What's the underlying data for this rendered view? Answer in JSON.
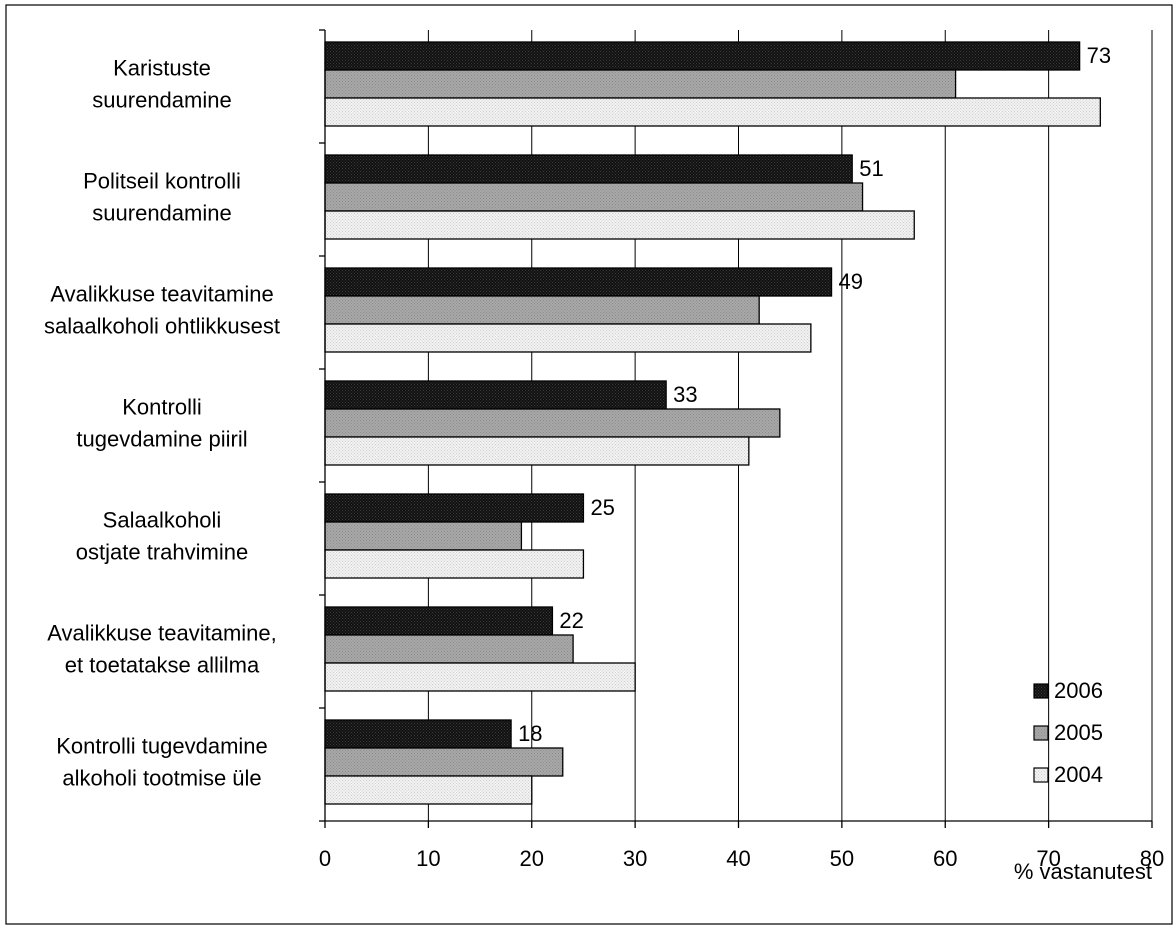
{
  "chart_data": {
    "type": "bar",
    "orientation": "horizontal",
    "categories": [
      [
        "Karistuste",
        "suurendamine"
      ],
      [
        "Politseil kontrolli",
        "suurendamine"
      ],
      [
        "Avalikkuse teavitamine",
        "salaalkoholi ohtlikkusest"
      ],
      [
        "Kontrolli",
        "tugevdamine piiril"
      ],
      [
        "Salaalkoholi",
        "ostjate trahvimine"
      ],
      [
        "Avalikkuse teavitamine,",
        "et toetatakse allilma"
      ],
      [
        "Kontrolli tugevdamine",
        "alkoholi tootmise üle"
      ]
    ],
    "series": [
      {
        "name": "2006",
        "values": [
          73,
          51,
          49,
          33,
          25,
          22,
          18
        ],
        "color": "#111111",
        "data_labels": true
      },
      {
        "name": "2005",
        "values": [
          61,
          52,
          42,
          44,
          19,
          24,
          23
        ],
        "color": "#a8a8a8",
        "data_labels": false
      },
      {
        "name": "2004",
        "values": [
          75,
          57,
          47,
          41,
          25,
          30,
          20
        ],
        "color": "#f2f2f2",
        "data_labels": false
      }
    ],
    "xlim": [
      0,
      80
    ],
    "xticks": [
      0,
      10,
      20,
      30,
      40,
      50,
      60,
      70,
      80
    ],
    "xlabel": "% vastanutest",
    "ylabel": "",
    "title": "",
    "grid": "vertical",
    "legend_position": "bottom-right"
  }
}
